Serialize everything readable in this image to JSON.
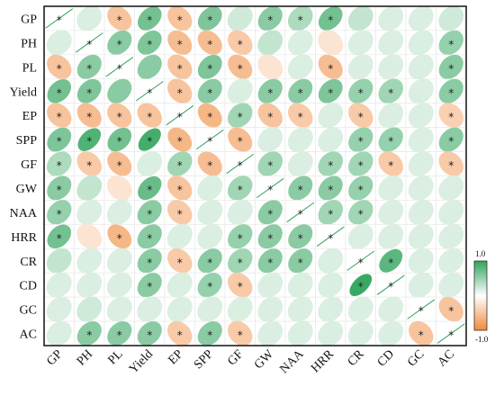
{
  "chart_data": {
    "type": "heatmap",
    "style": "correlation-ellipse",
    "variables": [
      "GP",
      "PH",
      "PL",
      "Yield",
      "EP",
      "SPP",
      "GF",
      "GW",
      "NAA",
      "HRR",
      "CR",
      "CD",
      "GC",
      "AC"
    ],
    "colors": {
      "positive": "#2ea35a",
      "negative": "#f08a3c",
      "neutral": "#ffffff"
    },
    "colorbar": {
      "min_label": "-1.0",
      "max_label": "1.0",
      "min": -1,
      "max": 1
    },
    "significance_marker": "*",
    "matrix": [
      [
        1.0,
        0.05,
        -0.35,
        0.5,
        -0.35,
        0.45,
        0.1,
        0.4,
        0.25,
        0.5,
        0.15,
        0.05,
        0.05,
        0.1
      ],
      [
        0.05,
        1.0,
        0.4,
        0.45,
        -0.4,
        -0.4,
        -0.3,
        0.15,
        0.05,
        -0.1,
        0.05,
        0.05,
        0.05,
        0.35
      ],
      [
        -0.35,
        0.4,
        1.0,
        0.4,
        -0.35,
        0.45,
        -0.4,
        -0.1,
        0.05,
        -0.4,
        0.05,
        0.05,
        0.05,
        0.4
      ],
      [
        0.5,
        0.45,
        0.4,
        1.0,
        -0.35,
        0.4,
        0.05,
        0.4,
        0.4,
        0.45,
        0.35,
        0.3,
        0.05,
        0.4
      ],
      [
        -0.35,
        -0.4,
        -0.35,
        -0.35,
        1.0,
        -0.45,
        0.3,
        -0.35,
        -0.3,
        0.05,
        -0.3,
        0.05,
        0.05,
        -0.25
      ],
      [
        0.45,
        0.65,
        0.5,
        0.7,
        -0.45,
        1.0,
        -0.4,
        0.05,
        0.05,
        0.05,
        0.35,
        0.35,
        0.05,
        0.4
      ],
      [
        0.25,
        -0.3,
        -0.4,
        0.05,
        0.3,
        -0.4,
        1.0,
        0.3,
        0.05,
        0.3,
        0.3,
        -0.3,
        0.05,
        -0.3
      ],
      [
        0.4,
        0.15,
        -0.1,
        0.55,
        -0.35,
        0.05,
        0.3,
        1.0,
        0.4,
        0.4,
        0.35,
        0.05,
        0.05,
        0.05
      ],
      [
        0.35,
        0.05,
        0.05,
        0.4,
        -0.3,
        0.05,
        0.05,
        0.4,
        1.0,
        0.3,
        0.3,
        0.05,
        0.05,
        0.05
      ],
      [
        0.5,
        -0.1,
        -0.45,
        0.4,
        0.05,
        0.05,
        0.35,
        0.4,
        0.4,
        1.0,
        0.05,
        0.05,
        0.05,
        0.05
      ],
      [
        0.15,
        0.05,
        0.05,
        0.4,
        -0.3,
        0.4,
        0.3,
        0.4,
        0.4,
        0.05,
        1.0,
        0.6,
        0.05,
        0.05
      ],
      [
        0.05,
        0.05,
        0.05,
        0.4,
        0.05,
        0.35,
        -0.3,
        0.05,
        0.05,
        0.05,
        0.75,
        1.0,
        0.05,
        0.05
      ],
      [
        0.05,
        0.1,
        0.05,
        0.05,
        0.05,
        0.05,
        0.05,
        0.05,
        0.05,
        0.05,
        0.05,
        0.05,
        1.0,
        -0.35
      ],
      [
        0.05,
        0.4,
        0.4,
        0.4,
        -0.3,
        0.4,
        -0.3,
        0.05,
        0.05,
        0.05,
        0.05,
        0.05,
        -0.35,
        1.0
      ]
    ],
    "significant": [
      [
        1,
        0,
        1,
        1,
        1,
        1,
        0,
        1,
        1,
        1,
        0,
        0,
        0,
        0
      ],
      [
        0,
        1,
        1,
        1,
        1,
        1,
        1,
        0,
        0,
        0,
        0,
        0,
        0,
        1
      ],
      [
        1,
        1,
        1,
        0,
        1,
        1,
        1,
        0,
        0,
        1,
        0,
        0,
        0,
        1
      ],
      [
        1,
        1,
        0,
        1,
        1,
        1,
        0,
        1,
        1,
        1,
        1,
        1,
        0,
        1
      ],
      [
        1,
        1,
        1,
        1,
        1,
        1,
        1,
        1,
        1,
        0,
        1,
        0,
        0,
        1
      ],
      [
        1,
        1,
        1,
        1,
        1,
        1,
        1,
        0,
        0,
        0,
        1,
        1,
        0,
        1
      ],
      [
        1,
        1,
        1,
        0,
        1,
        1,
        1,
        1,
        0,
        1,
        1,
        1,
        0,
        1
      ],
      [
        1,
        0,
        0,
        1,
        1,
        0,
        1,
        1,
        1,
        1,
        1,
        0,
        0,
        0
      ],
      [
        1,
        0,
        0,
        1,
        1,
        0,
        0,
        1,
        1,
        1,
        1,
        0,
        0,
        0
      ],
      [
        1,
        0,
        1,
        1,
        0,
        0,
        1,
        1,
        1,
        1,
        0,
        0,
        0,
        0
      ],
      [
        0,
        0,
        0,
        1,
        1,
        1,
        1,
        1,
        1,
        0,
        1,
        1,
        0,
        0
      ],
      [
        0,
        0,
        0,
        1,
        0,
        1,
        1,
        0,
        0,
        0,
        1,
        1,
        0,
        0
      ],
      [
        0,
        0,
        0,
        0,
        0,
        0,
        0,
        0,
        0,
        0,
        0,
        0,
        1,
        1
      ],
      [
        0,
        1,
        1,
        1,
        1,
        1,
        1,
        0,
        0,
        0,
        0,
        0,
        1,
        1
      ]
    ]
  }
}
